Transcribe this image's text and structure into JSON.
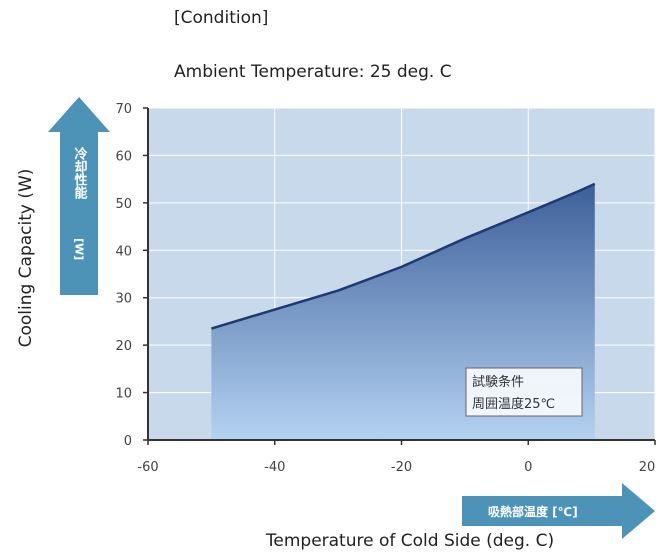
{
  "condition": {
    "heading": "[Condition]",
    "ambient": "Ambient Temperature: 25 deg. C"
  },
  "ylabel_en": "Cooling Capacity (W)",
  "xlabel_en": "Temperature of Cold Side (deg. C)",
  "y_arrow": {
    "title": "冷却性能",
    "unit": "[W]"
  },
  "x_arrow": {
    "label": "吸熱部温度 [℃]"
  },
  "note": {
    "line1": "試験条件",
    "line2": "周囲温度25℃"
  },
  "colors": {
    "plot_bg": "#c9d9ec",
    "fill_top": "#3d5f9a",
    "fill_bottom": "#b4d2f1",
    "line": "#1e3a6e",
    "arrow": "#4d93b7",
    "grid": "#ffffff"
  },
  "chart_data": {
    "type": "area",
    "title": "",
    "xlabel": "Temperature of Cold Side (deg. C)",
    "ylabel": "Cooling Capacity (W)",
    "xlim": [
      -60,
      20
    ],
    "ylim": [
      0,
      70
    ],
    "xticks": [
      -60,
      -40,
      -20,
      0,
      20
    ],
    "yticks": [
      0,
      10,
      20,
      30,
      40,
      50,
      60,
      70
    ],
    "grid": true,
    "series": [
      {
        "x": [
          -50,
          -40,
          -30,
          -20,
          -10,
          0,
          8,
          10.5
        ],
        "y": [
          23.5,
          27.5,
          31.5,
          36.5,
          42.5,
          48,
          52.5,
          54
        ]
      }
    ]
  }
}
